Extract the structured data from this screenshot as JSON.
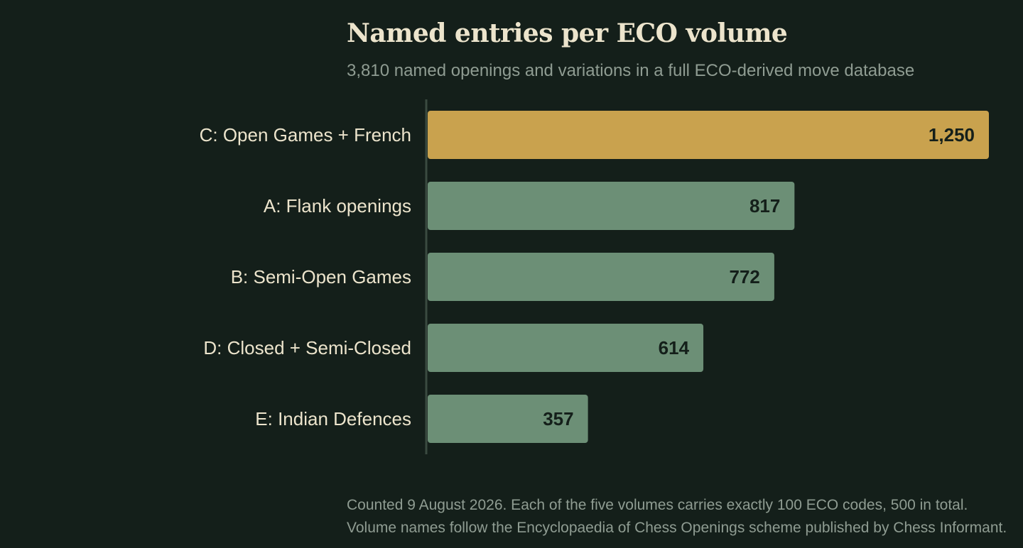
{
  "chart_data": {
    "type": "bar",
    "orientation": "horizontal",
    "title": "Named entries per ECO volume",
    "subtitle": "3,810 named openings and variations in a full ECO-derived move database",
    "categories": [
      "C: Open Games + French",
      "A: Flank openings",
      "B: Semi-Open Games",
      "D: Closed + Semi-Closed",
      "E: Indian Defences"
    ],
    "values": [
      1250,
      817,
      772,
      614,
      357
    ],
    "value_labels": [
      "1,250",
      "817",
      "772",
      "614",
      "357"
    ],
    "highlight_index": 0,
    "xlim": [
      0,
      1250
    ],
    "grid": false,
    "legend": "none",
    "colors": {
      "highlight": "#c9a24e",
      "bar": "#6c8f76",
      "axis": "#3a4a40",
      "category_text": "#ece4cc",
      "value_text": "#141f1a",
      "background": "#141f1a"
    }
  },
  "notes": [
    "Counted 9 August 2026. Each of the five volumes carries exactly 100 ECO codes, 500 in total.",
    "Volume names follow the Encyclopaedia of Chess Openings scheme published by Chess Informant."
  ]
}
